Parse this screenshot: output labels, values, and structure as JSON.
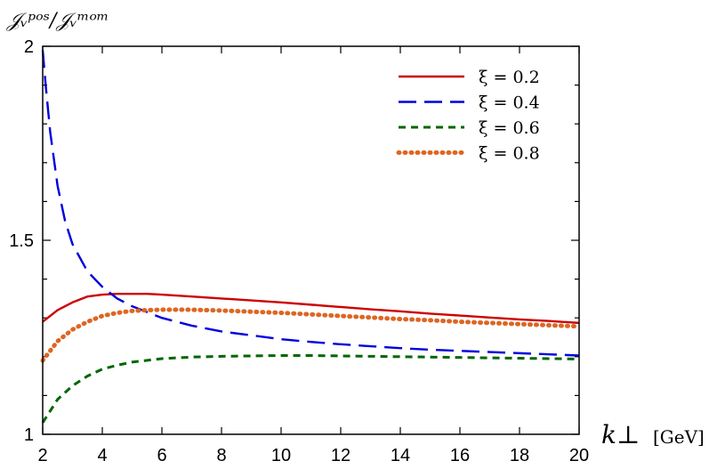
{
  "chart_data": {
    "type": "line",
    "xlabel_main": "k⊥",
    "xlabel_unit": "[GeV]",
    "ylabel": "𝒥ᵥᵖᵒˢ/𝒥ᵥᵐᵒᵐ",
    "xlim": [
      2,
      20
    ],
    "ylim": [
      1,
      2
    ],
    "xticks": [
      2,
      4,
      6,
      8,
      10,
      12,
      14,
      16,
      18,
      20
    ],
    "yticks": [
      1,
      1.5,
      2
    ],
    "ytick_labels": [
      "1",
      "1.5",
      "2"
    ],
    "grid": false,
    "legend_position": "top-right",
    "series": [
      {
        "name": "ξ = 0.2",
        "color": "#cc0000",
        "dash": "solid",
        "x": [
          2,
          2.5,
          3,
          3.5,
          4,
          4.5,
          5,
          5.5,
          6,
          7,
          8,
          9,
          10,
          11,
          12,
          13,
          14,
          15,
          16,
          17,
          18,
          19,
          20
        ],
        "y": [
          1.29,
          1.32,
          1.34,
          1.355,
          1.36,
          1.362,
          1.362,
          1.362,
          1.36,
          1.355,
          1.35,
          1.345,
          1.34,
          1.334,
          1.328,
          1.322,
          1.317,
          1.311,
          1.306,
          1.301,
          1.296,
          1.292,
          1.287
        ]
      },
      {
        "name": "ξ = 0.4",
        "color": "#0000dd",
        "dash": "long-dash",
        "x": [
          2,
          2.1,
          2.25,
          2.5,
          2.75,
          3,
          3.5,
          4,
          4.5,
          5,
          5.5,
          6,
          7,
          8,
          9,
          10,
          11,
          12,
          13,
          14,
          15,
          16,
          17,
          18,
          19,
          20
        ],
        "y": [
          1.99,
          1.9,
          1.78,
          1.64,
          1.55,
          1.49,
          1.42,
          1.38,
          1.35,
          1.33,
          1.315,
          1.3,
          1.28,
          1.265,
          1.255,
          1.245,
          1.238,
          1.232,
          1.227,
          1.222,
          1.218,
          1.215,
          1.212,
          1.209,
          1.206,
          1.203
        ]
      },
      {
        "name": "ξ = 0.6",
        "color": "#006600",
        "dash": "dashed",
        "x": [
          2,
          2.5,
          3,
          3.5,
          4,
          4.5,
          5,
          6,
          7,
          8,
          9,
          10,
          11,
          12,
          13,
          14,
          15,
          16,
          17,
          18,
          19,
          20
        ],
        "y": [
          1.03,
          1.09,
          1.125,
          1.15,
          1.168,
          1.178,
          1.186,
          1.195,
          1.199,
          1.201,
          1.202,
          1.203,
          1.203,
          1.202,
          1.201,
          1.2,
          1.199,
          1.198,
          1.197,
          1.196,
          1.195,
          1.194
        ]
      },
      {
        "name": "ξ = 0.8",
        "color": "#dd6622",
        "dash": "dotted",
        "x": [
          2,
          2.5,
          3,
          3.5,
          4,
          4.5,
          5,
          5.5,
          6,
          7,
          8,
          9,
          10,
          11,
          12,
          13,
          14,
          15,
          16,
          17,
          18,
          19,
          20
        ],
        "y": [
          1.19,
          1.24,
          1.27,
          1.29,
          1.305,
          1.313,
          1.318,
          1.32,
          1.321,
          1.321,
          1.319,
          1.316,
          1.313,
          1.309,
          1.305,
          1.301,
          1.297,
          1.294,
          1.29,
          1.287,
          1.284,
          1.281,
          1.278
        ]
      }
    ]
  }
}
